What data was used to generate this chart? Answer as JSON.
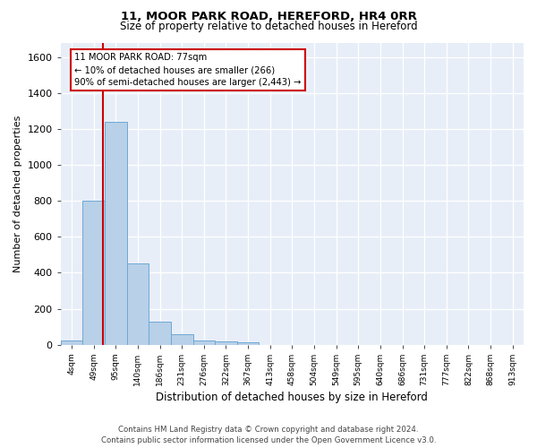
{
  "title_line1": "11, MOOR PARK ROAD, HEREFORD, HR4 0RR",
  "title_line2": "Size of property relative to detached houses in Hereford",
  "xlabel": "Distribution of detached houses by size in Hereford",
  "ylabel": "Number of detached properties",
  "bar_color": "#b8d0e8",
  "bar_edge_color": "#6fa8d4",
  "plot_bg_color": "#e8eef8",
  "grid_color": "#ffffff",
  "vline_color": "#cc0000",
  "vline_x": 1.4,
  "annotation_text": "11 MOOR PARK ROAD: 77sqm\n← 10% of detached houses are smaller (266)\n90% of semi-detached houses are larger (2,443) →",
  "categories": [
    "4sqm",
    "49sqm",
    "95sqm",
    "140sqm",
    "186sqm",
    "231sqm",
    "276sqm",
    "322sqm",
    "367sqm",
    "413sqm",
    "458sqm",
    "504sqm",
    "549sqm",
    "595sqm",
    "640sqm",
    "686sqm",
    "731sqm",
    "777sqm",
    "822sqm",
    "868sqm",
    "913sqm"
  ],
  "values": [
    25,
    800,
    1240,
    450,
    130,
    60,
    25,
    18,
    15,
    0,
    0,
    0,
    0,
    0,
    0,
    0,
    0,
    0,
    0,
    0,
    0
  ],
  "ylim": [
    0,
    1680
  ],
  "yticks": [
    0,
    200,
    400,
    600,
    800,
    1000,
    1200,
    1400,
    1600
  ],
  "footnote_line1": "Contains HM Land Registry data © Crown copyright and database right 2024.",
  "footnote_line2": "Contains public sector information licensed under the Open Government Licence v3.0."
}
